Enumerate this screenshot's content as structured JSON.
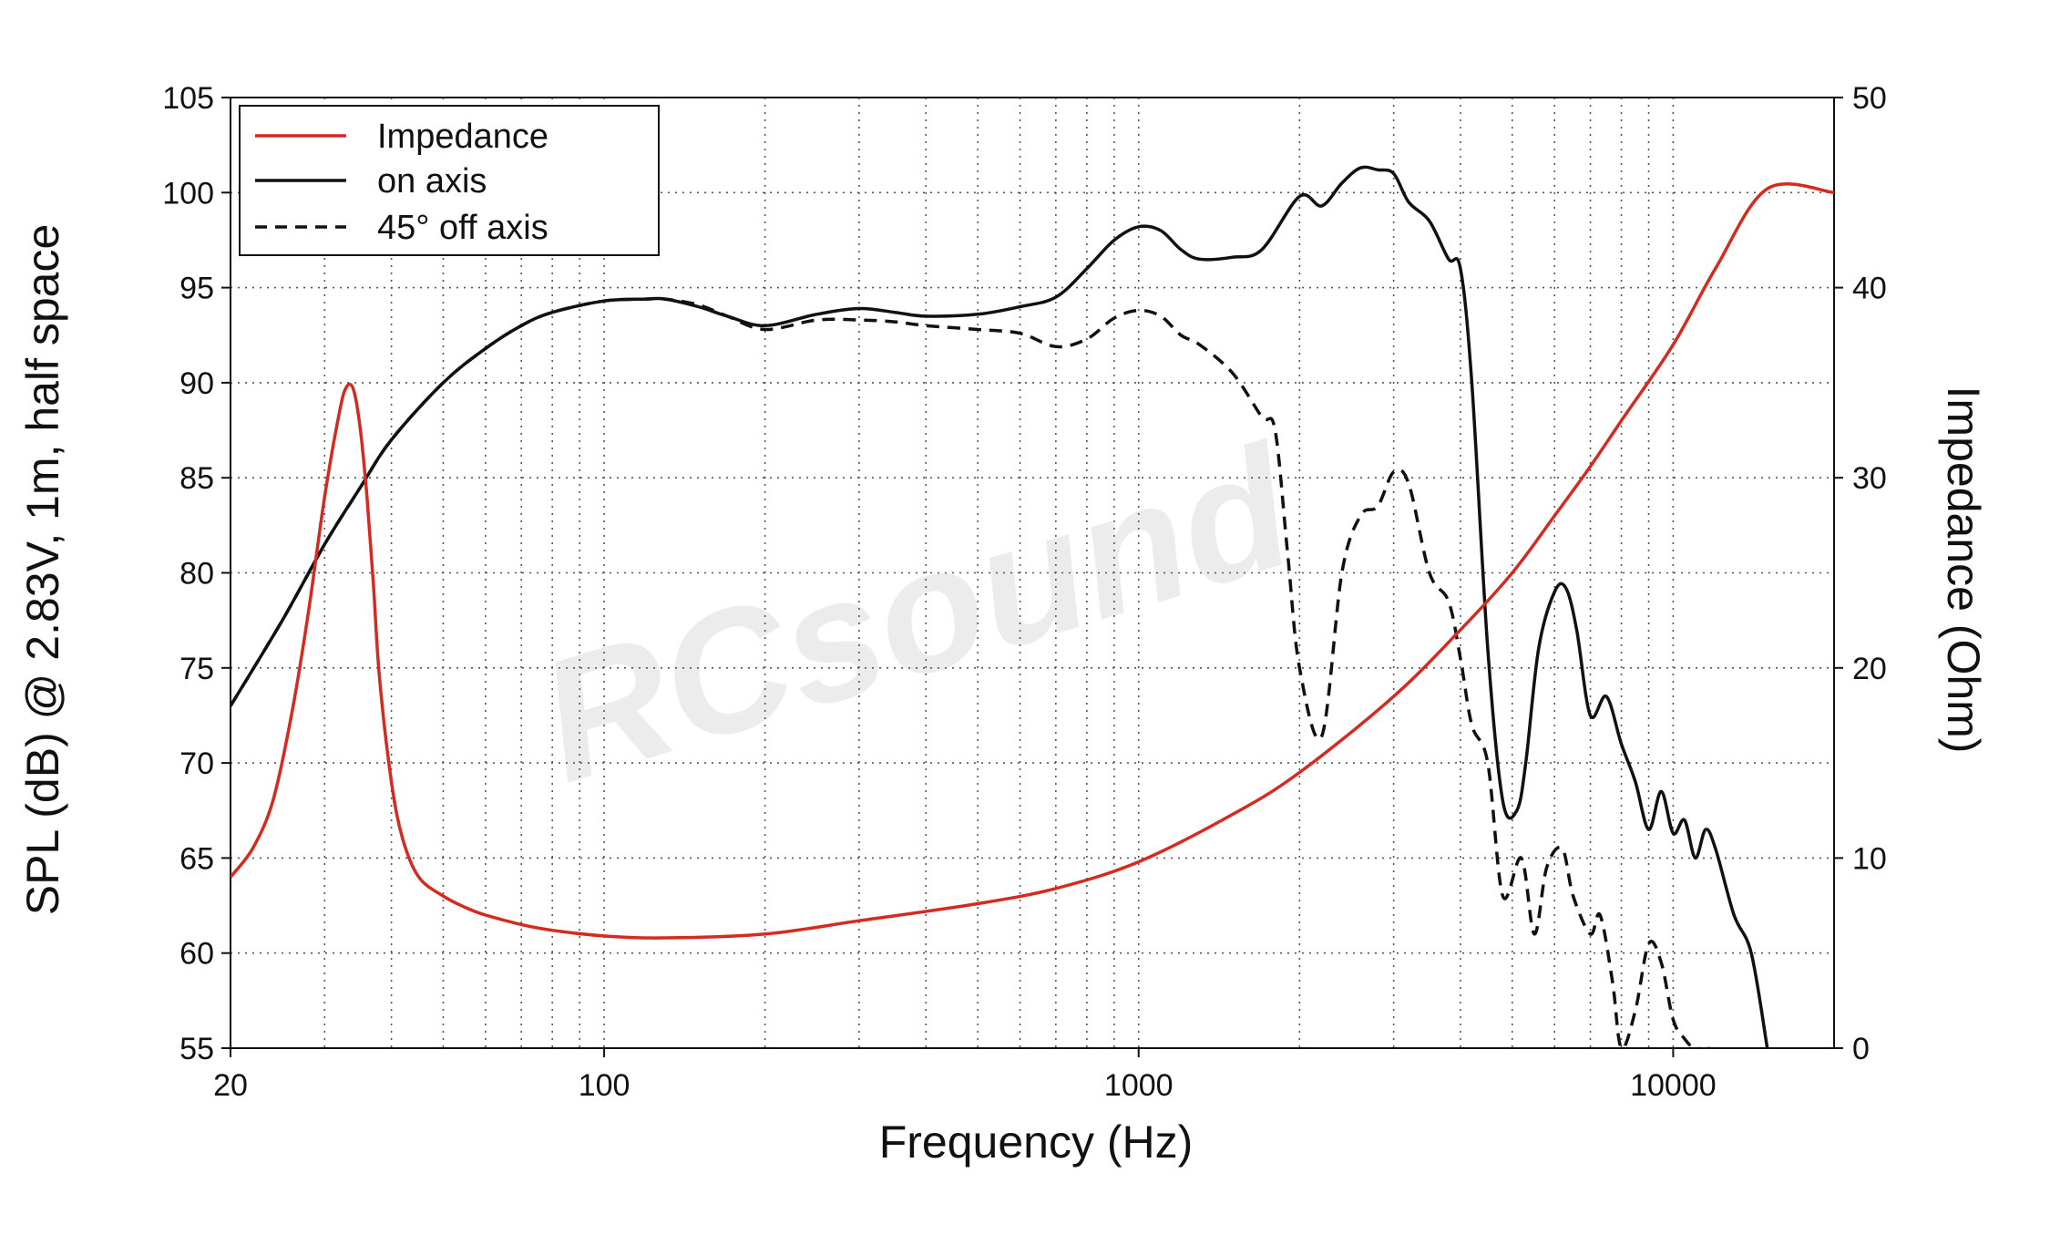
{
  "chart_data": {
    "type": "line",
    "xlabel": "Frequency (Hz)",
    "ylabel_left": "SPL (dB) @ 2.83V, 1m, half space",
    "ylabel_right": "Impedance (Ohm)",
    "x_scale": "log",
    "xlim": [
      20,
      20000
    ],
    "ylim_left": [
      55,
      105
    ],
    "ylim_right": [
      0,
      50
    ],
    "grid": true,
    "legend_position": "top-left",
    "x_tick_labels": [
      "20",
      "100",
      "1000",
      "10000"
    ],
    "x_tick_values": [
      20,
      100,
      1000,
      10000
    ],
    "y_left_ticks": [
      105,
      100,
      95,
      90,
      85,
      80,
      75,
      70,
      65,
      60,
      55
    ],
    "y_right_ticks": [
      50,
      40,
      30,
      20,
      10,
      0
    ],
    "watermark": "RCsound",
    "colors": {
      "impedance": "#d42a20",
      "on_axis": "#111111",
      "off_axis": "#111111"
    },
    "series": [
      {
        "name": "Impedance",
        "axis": "right",
        "style": "solid",
        "x": [
          20,
          22,
          24,
          26,
          28,
          30,
          32,
          33,
          34,
          35,
          36,
          37,
          38,
          40,
          42,
          45,
          50,
          55,
          60,
          70,
          80,
          100,
          130,
          200,
          300,
          500,
          700,
          1000,
          1500,
          2000,
          3000,
          4000,
          5000,
          6000,
          7000,
          8000,
          10000,
          12000,
          15000,
          20000
        ],
        "values": [
          9,
          10.5,
          13,
          17.5,
          23,
          29,
          33.5,
          34.8,
          34.6,
          32.5,
          29,
          24.5,
          19.5,
          14,
          11,
          9,
          8,
          7.4,
          7,
          6.5,
          6.2,
          5.9,
          5.8,
          6,
          6.7,
          7.6,
          8.4,
          9.8,
          12.3,
          14.5,
          18.5,
          22,
          25,
          28,
          30.6,
          33,
          37,
          41,
          45.2,
          45
        ]
      },
      {
        "name": "on axis",
        "axis": "left",
        "style": "solid",
        "x": [
          20,
          25,
          30,
          35,
          40,
          50,
          60,
          70,
          80,
          100,
          120,
          130,
          150,
          170,
          200,
          250,
          300,
          350,
          400,
          500,
          600,
          700,
          800,
          900,
          1000,
          1100,
          1200,
          1300,
          1500,
          1700,
          2000,
          2200,
          2400,
          2600,
          2800,
          3000,
          3200,
          3500,
          3800,
          4000,
          4200,
          4500,
          4800,
          5100,
          5300,
          5600,
          6000,
          6300,
          6600,
          7000,
          7500,
          8000,
          8500,
          9000,
          9500,
          10000,
          10500,
          11000,
          11500,
          12000,
          13000,
          14000,
          15000
        ],
        "values": [
          73,
          77.5,
          81.5,
          84.5,
          87,
          90,
          91.8,
          93,
          93.7,
          94.3,
          94.4,
          94.4,
          94,
          93.5,
          93,
          93.6,
          93.9,
          93.7,
          93.5,
          93.6,
          94,
          94.5,
          96,
          97.5,
          98.2,
          98,
          97,
          96.5,
          96.6,
          97,
          99.8,
          99.3,
          100.5,
          101.3,
          101.2,
          101,
          99.5,
          98.5,
          96.5,
          96,
          90,
          76,
          68,
          67.5,
          70,
          76,
          79,
          79.2,
          77,
          72.5,
          73.5,
          71,
          69,
          66.5,
          68.5,
          66.3,
          67,
          65,
          66.5,
          65.5,
          62,
          60,
          55
        ]
      },
      {
        "name": "45° off axis",
        "axis": "left",
        "style": "dashed",
        "x": [
          20,
          25,
          30,
          35,
          40,
          50,
          60,
          70,
          80,
          100,
          120,
          130,
          150,
          170,
          200,
          250,
          300,
          350,
          400,
          500,
          600,
          700,
          800,
          900,
          1000,
          1100,
          1200,
          1300,
          1500,
          1700,
          1800,
          1900,
          2000,
          2200,
          2400,
          2600,
          2800,
          3000,
          3200,
          3500,
          3800,
          4000,
          4200,
          4500,
          4800,
          5200,
          5500,
          5800,
          6200,
          6500,
          7000,
          7300,
          7700,
          8000,
          8500,
          9000,
          9500,
          10000,
          10500,
          11000,
          12000
        ],
        "values": [
          73,
          77.5,
          81.5,
          84.5,
          87,
          90,
          91.8,
          93,
          93.7,
          94.3,
          94.4,
          94.4,
          94.1,
          93.5,
          92.8,
          93.3,
          93.3,
          93.2,
          93,
          92.8,
          92.6,
          91.9,
          92.3,
          93.4,
          93.8,
          93.5,
          92.5,
          92,
          90.5,
          88.2,
          87.5,
          81,
          75,
          71.4,
          80,
          83,
          83.5,
          85.3,
          84.7,
          80,
          78.5,
          75.5,
          72,
          70,
          63,
          65,
          61,
          64.5,
          65.5,
          63,
          61,
          62,
          58.5,
          55,
          57,
          60.5,
          59.5,
          56.5,
          55.5,
          55,
          55
        ]
      }
    ],
    "legend": [
      "Impedance",
      "on axis",
      "45° off axis"
    ]
  }
}
